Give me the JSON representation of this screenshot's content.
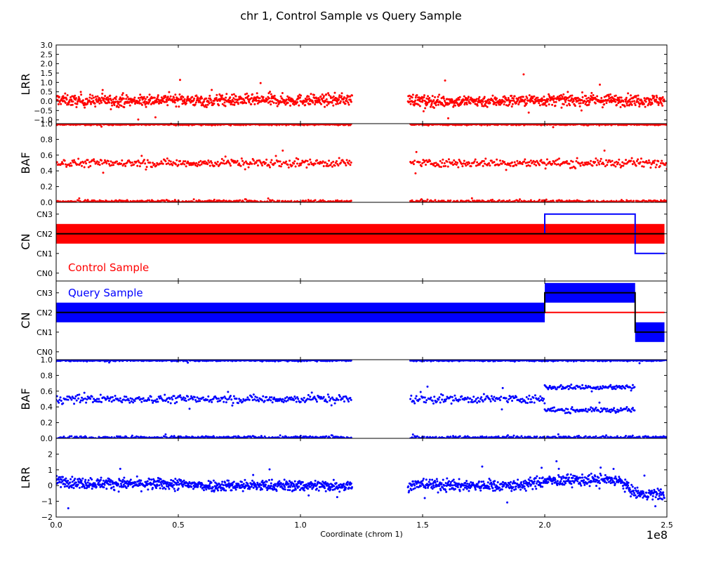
{
  "title": "chr 1, Control Sample vs Query Sample",
  "xlabel": "Coordinate (chrom 1)",
  "x_offset_label": "1e8",
  "x_ticks": [
    {
      "v": 0.0,
      "label": "0.0"
    },
    {
      "v": 0.5,
      "label": "0.5"
    },
    {
      "v": 1.0,
      "label": "1.0"
    },
    {
      "v": 1.5,
      "label": "1.5"
    },
    {
      "v": 2.0,
      "label": "2.0"
    },
    {
      "v": 2.5,
      "label": "2.5"
    }
  ],
  "colors": {
    "control": "#ff0000",
    "query": "#0000ff",
    "median": "#000000"
  },
  "chart_data": [
    {
      "type": "scatter",
      "ylabel": "LRR",
      "sample": "control",
      "xlim": [
        0,
        2.5
      ],
      "ylim": [
        -1.2,
        3.0
      ],
      "y_ticks": [
        {
          "v": -1.0,
          "label": "−1.0"
        },
        {
          "v": -0.5,
          "label": "−0.5"
        },
        {
          "v": 0.0,
          "label": "0.0"
        },
        {
          "v": 0.5,
          "label": "0.5"
        },
        {
          "v": 1.0,
          "label": "1.0"
        },
        {
          "v": 1.5,
          "label": "1.5"
        },
        {
          "v": 2.0,
          "label": "2.0"
        },
        {
          "v": 2.5,
          "label": "2.5"
        },
        {
          "v": 3.0,
          "label": "3.0"
        }
      ],
      "x": [
        0.0,
        0.1,
        0.2,
        0.3,
        0.4,
        0.5,
        0.6,
        0.7,
        0.8,
        0.9,
        1.0,
        1.1,
        1.2,
        1.45,
        1.5,
        1.6,
        1.7,
        1.8,
        1.9,
        2.0,
        2.1,
        2.2,
        2.3,
        2.4,
        2.5
      ],
      "y": [
        0.1,
        0.0,
        0.05,
        0.0,
        0.05,
        0.1,
        0.0,
        0.05,
        0.05,
        0.05,
        0.05,
        0.05,
        0.1,
        0.1,
        0.0,
        0.0,
        0.0,
        0.0,
        0.05,
        0.05,
        0.05,
        0.05,
        0.05,
        0.05,
        0.05
      ],
      "spread": 0.3
    },
    {
      "type": "scatter",
      "ylabel": "BAF",
      "sample": "control",
      "xlim": [
        0,
        2.5
      ],
      "ylim": [
        0.0,
        1.0
      ],
      "y_ticks": [
        {
          "v": 0.0,
          "label": "0.0"
        },
        {
          "v": 0.2,
          "label": "0.2"
        },
        {
          "v": 0.4,
          "label": "0.4"
        },
        {
          "v": 0.6,
          "label": "0.6"
        },
        {
          "v": 0.8,
          "label": "0.8"
        },
        {
          "v": 1.0,
          "label": "1.0"
        }
      ],
      "bands": [
        {
          "segments": [
            [
              0.0,
              1.21
            ],
            [
              1.45,
              2.5
            ]
          ],
          "y": 0.01,
          "spread": 0.02
        },
        {
          "segments": [
            [
              0.0,
              1.21
            ],
            [
              1.45,
              2.5
            ]
          ],
          "y": 0.99,
          "spread": 0.01
        },
        {
          "segments": [
            [
              0.0,
              1.21
            ],
            [
              1.45,
              2.5
            ]
          ],
          "y": 0.5,
          "spread": 0.05
        }
      ]
    },
    {
      "type": "step",
      "ylabel": "CN",
      "sample": "control",
      "annotation": "Control Sample",
      "xlim": [
        0,
        2.5
      ],
      "ylim": [
        -0.4,
        3.6
      ],
      "y_ticks": [
        {
          "v": 0,
          "label": "CN0"
        },
        {
          "v": 1,
          "label": "CN1"
        },
        {
          "v": 2,
          "label": "CN2"
        },
        {
          "v": 3,
          "label": "CN3"
        }
      ],
      "segments": [
        {
          "start": 0.0,
          "end": 2.49,
          "cn": 2
        }
      ],
      "median": {
        "x": [
          0.0,
          2.49
        ],
        "y": [
          2,
          2
        ]
      },
      "other_sample_profile": {
        "x": [
          2.0,
          2.0,
          2.37,
          2.37,
          2.49
        ],
        "y": [
          2,
          3,
          3,
          1,
          1
        ]
      }
    },
    {
      "type": "step",
      "ylabel": "CN",
      "sample": "query",
      "annotation": "Query Sample",
      "xlim": [
        0,
        2.5
      ],
      "ylim": [
        -0.4,
        3.6
      ],
      "y_ticks": [
        {
          "v": 0,
          "label": "CN0"
        },
        {
          "v": 1,
          "label": "CN1"
        },
        {
          "v": 2,
          "label": "CN2"
        },
        {
          "v": 3,
          "label": "CN3"
        }
      ],
      "segments": [
        {
          "start": 0.0,
          "end": 2.0,
          "cn": 2
        },
        {
          "start": 2.0,
          "end": 2.37,
          "cn": 3
        },
        {
          "start": 2.37,
          "end": 2.49,
          "cn": 1
        }
      ],
      "median": {
        "x": [
          0.0,
          2.0,
          2.0,
          2.37,
          2.37,
          2.49
        ],
        "y": [
          2,
          2,
          3,
          3,
          1,
          1
        ]
      },
      "other_sample_profile": {
        "x": [
          2.0,
          2.49
        ],
        "y": [
          2,
          2
        ]
      }
    },
    {
      "type": "scatter",
      "ylabel": "BAF",
      "sample": "query",
      "xlim": [
        0,
        2.5
      ],
      "ylim": [
        0.0,
        1.0
      ],
      "y_ticks": [
        {
          "v": 0.0,
          "label": "0.0"
        },
        {
          "v": 0.2,
          "label": "0.2"
        },
        {
          "v": 0.4,
          "label": "0.4"
        },
        {
          "v": 0.6,
          "label": "0.6"
        },
        {
          "v": 0.8,
          "label": "0.8"
        },
        {
          "v": 1.0,
          "label": "1.0"
        }
      ],
      "bands": [
        {
          "segments": [
            [
              0.0,
              1.21
            ],
            [
              1.45,
              2.5
            ]
          ],
          "y": 0.01,
          "spread": 0.02
        },
        {
          "segments": [
            [
              0.0,
              1.21
            ],
            [
              1.45,
              2.5
            ]
          ],
          "y": 0.99,
          "spread": 0.01
        },
        {
          "segments": [
            [
              0.0,
              1.21
            ],
            [
              1.45,
              2.0
            ]
          ],
          "y": 0.5,
          "spread": 0.05
        },
        {
          "segments": [
            [
              2.0,
              2.37
            ]
          ],
          "y": 0.65,
          "spread": 0.03
        },
        {
          "segments": [
            [
              2.0,
              2.37
            ]
          ],
          "y": 0.36,
          "spread": 0.03
        }
      ]
    },
    {
      "type": "scatter",
      "ylabel": "LRR",
      "sample": "query",
      "xlim": [
        0,
        2.5
      ],
      "ylim": [
        -2.0,
        3.0
      ],
      "y_ticks": [
        {
          "v": -2,
          "label": "−2"
        },
        {
          "v": -1,
          "label": "−1"
        },
        {
          "v": 0,
          "label": "0"
        },
        {
          "v": 1,
          "label": "1"
        },
        {
          "v": 2,
          "label": "2"
        }
      ],
      "x": [
        0.0,
        0.1,
        0.2,
        0.3,
        0.4,
        0.5,
        0.6,
        0.7,
        0.8,
        0.9,
        1.0,
        1.1,
        1.2,
        1.45,
        1.5,
        1.6,
        1.7,
        1.8,
        1.9,
        2.0,
        2.1,
        2.2,
        2.3,
        2.37,
        2.4,
        2.5
      ],
      "y": [
        0.3,
        0.15,
        0.15,
        0.1,
        0.1,
        0.1,
        0.0,
        0.0,
        0.0,
        0.0,
        0.0,
        0.0,
        0.0,
        0.0,
        0.1,
        0.0,
        0.0,
        0.0,
        0.0,
        0.3,
        0.35,
        0.35,
        0.35,
        -0.5,
        -0.55,
        -0.55
      ],
      "spread": 0.35
    }
  ]
}
